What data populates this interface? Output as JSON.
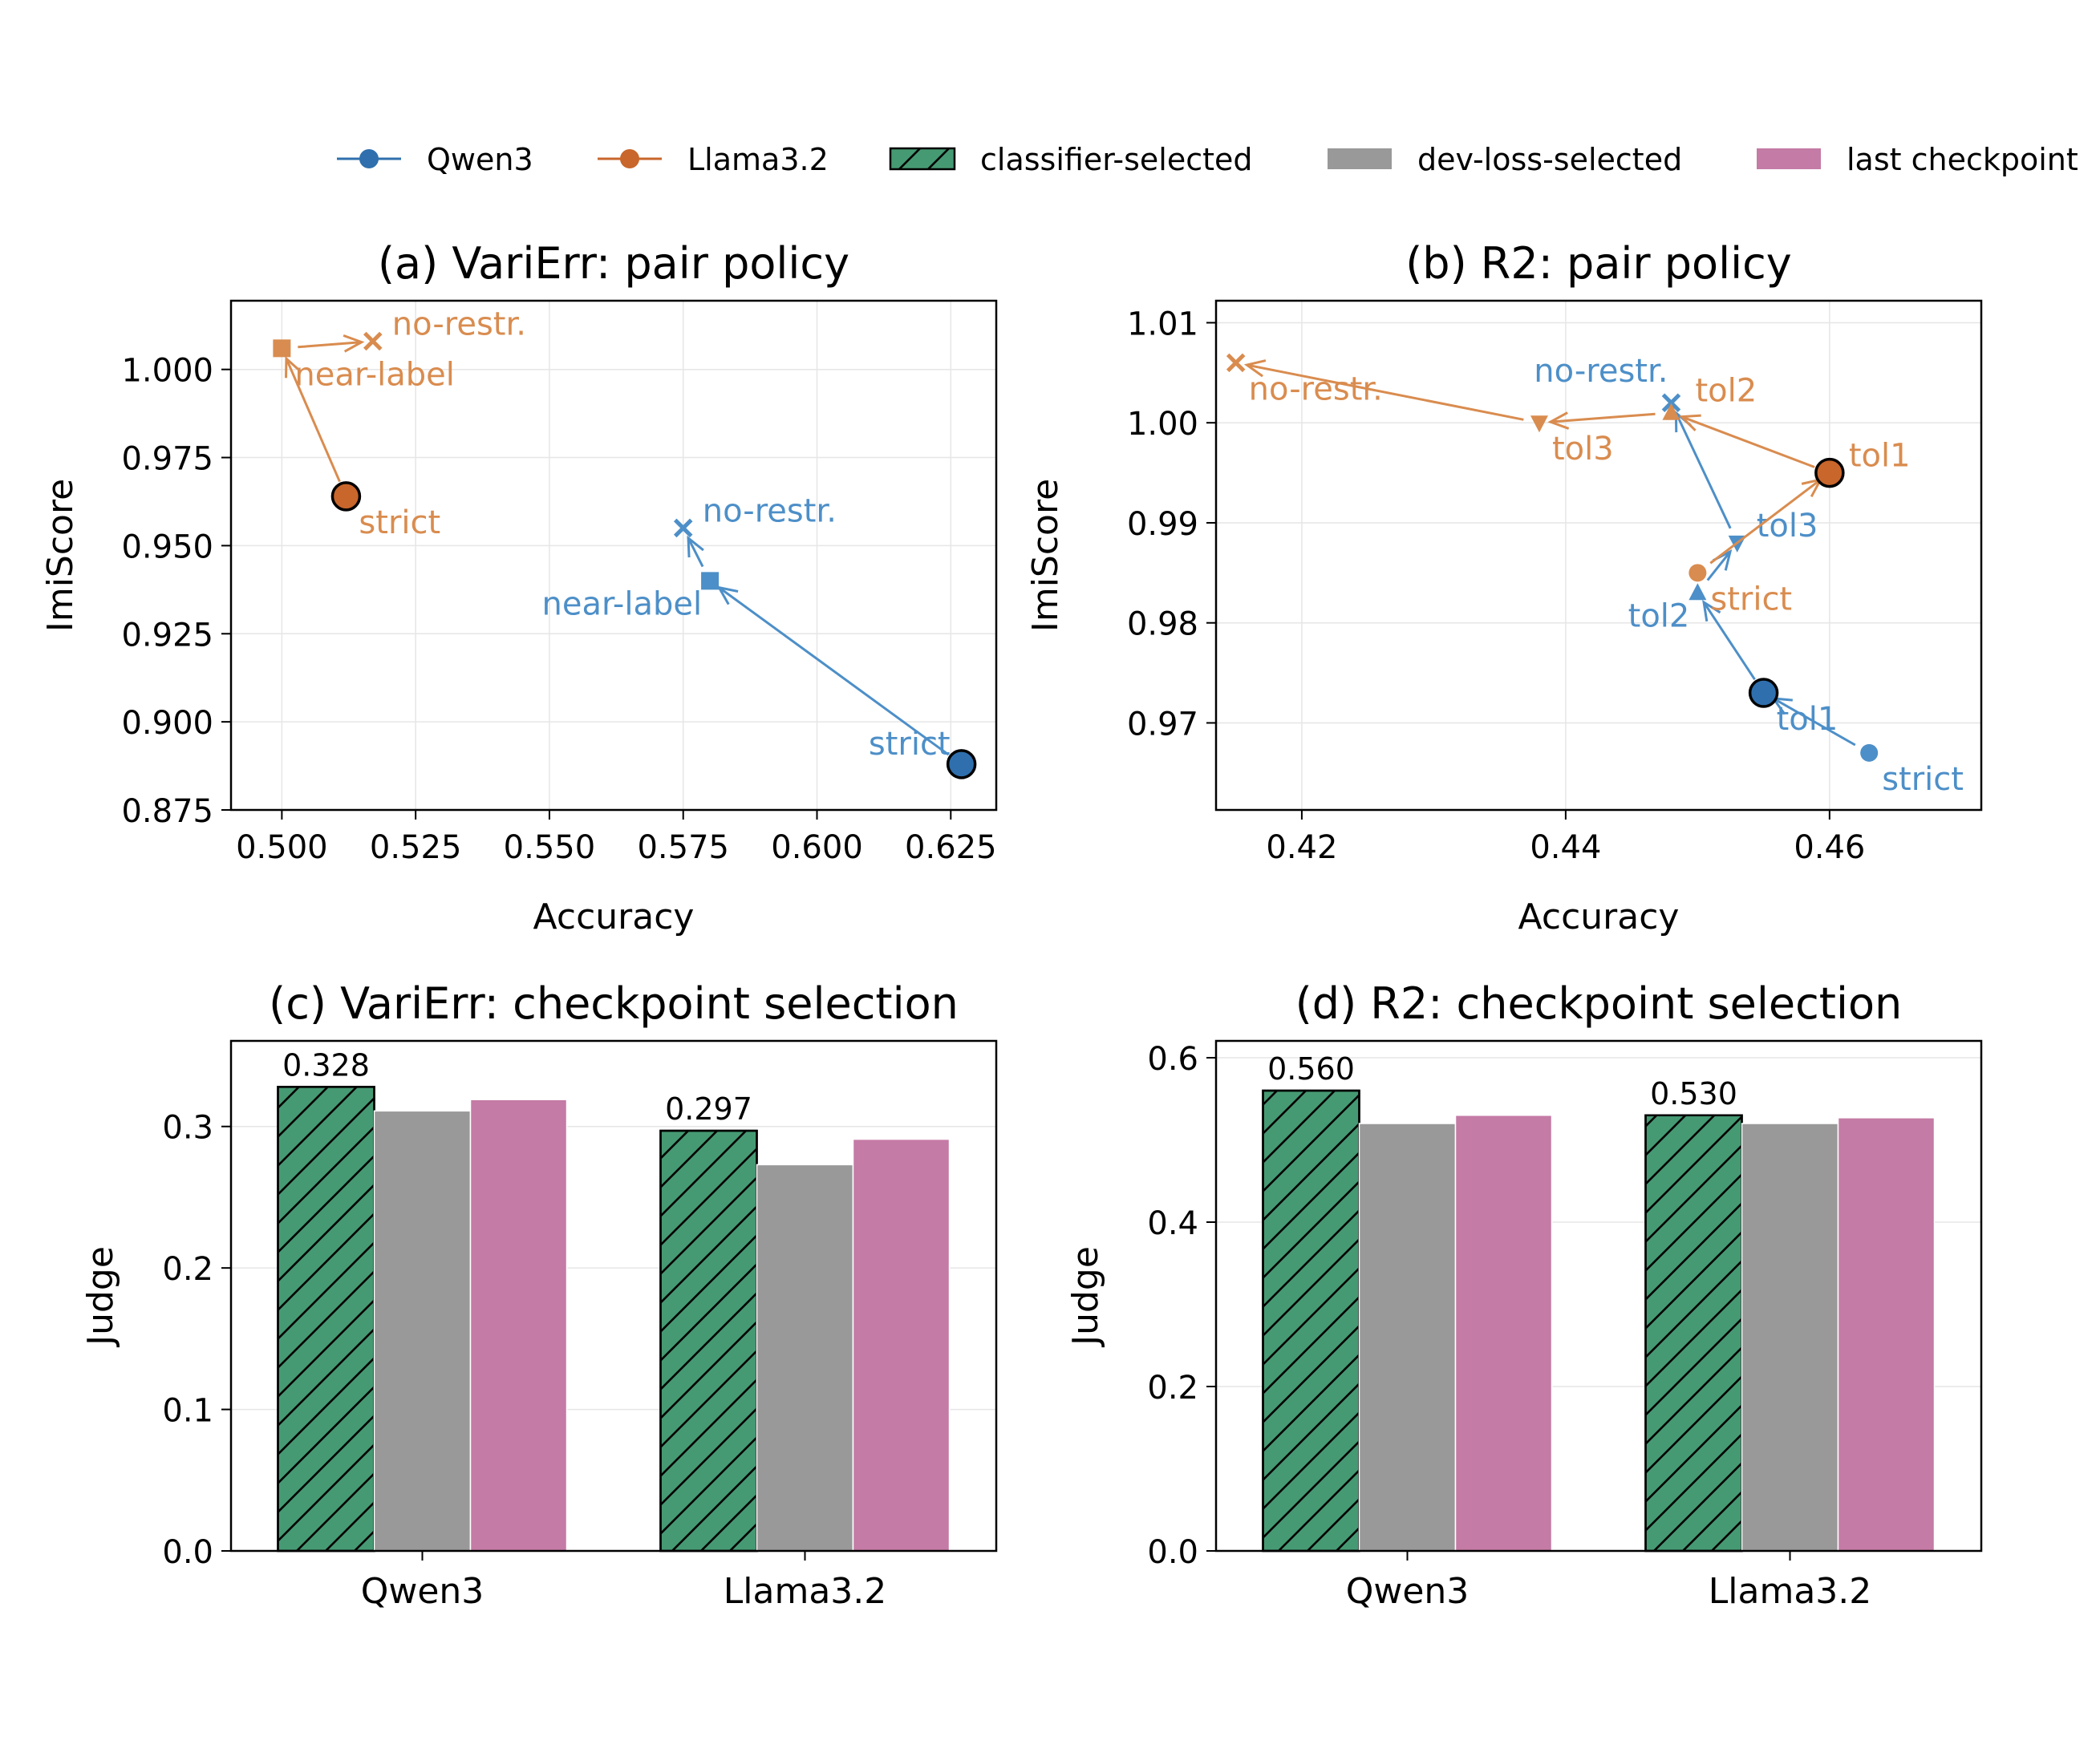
{
  "colors": {
    "qwen": "#2f6fad",
    "llama": "#c8662b",
    "qwen_light": "#4d8fc8",
    "llama_light": "#d98c4f",
    "classifier": "#469a73",
    "devloss": "#999999",
    "last": "#c47ba5"
  },
  "legend": [
    {
      "label": "Qwen3",
      "kind": "line-marker",
      "color": "qwen"
    },
    {
      "label": "Llama3.2",
      "kind": "line-marker",
      "color": "llama"
    },
    {
      "label": "classifier-selected",
      "kind": "hatched",
      "color": "classifier"
    },
    {
      "label": "dev-loss-selected",
      "kind": "bar",
      "color": "devloss"
    },
    {
      "label": "last checkpoint",
      "kind": "bar",
      "color": "last"
    }
  ],
  "chart_data": [
    {
      "type": "scatter",
      "title": "(a) VariErr: pair policy",
      "xlabel": "Accuracy",
      "ylabel": "ImiScore",
      "xlim": [
        0.4905,
        0.6335
      ],
      "ylim": [
        0.875,
        1.0195
      ],
      "xticks": [
        0.5,
        0.525,
        0.55,
        0.575,
        0.6,
        0.625
      ],
      "xtick_labels": [
        "0.500",
        "0.525",
        "0.550",
        "0.575",
        "0.600",
        "0.625"
      ],
      "yticks": [
        0.875,
        0.9,
        0.925,
        0.95,
        0.975,
        1.0
      ],
      "ytick_labels": [
        "0.875",
        "0.900",
        "0.925",
        "0.950",
        "0.975",
        "1.000"
      ],
      "series": [
        {
          "name": "Qwen3",
          "color": "qwen",
          "points": [
            {
              "label": "strict",
              "x": 0.627,
              "y": 0.888,
              "marker": "circle-big",
              "label_pos": "left"
            },
            {
              "label": "near-label",
              "x": 0.58,
              "y": 0.94,
              "marker": "square",
              "label_pos": "below-left"
            },
            {
              "label": "no-restr.",
              "x": 0.575,
              "y": 0.955,
              "marker": "x",
              "label_pos": "right"
            }
          ]
        },
        {
          "name": "Llama3.2",
          "color": "llama",
          "points": [
            {
              "label": "strict",
              "x": 0.512,
              "y": 0.964,
              "marker": "circle-big",
              "label_pos": "below-right"
            },
            {
              "label": "near-label",
              "x": 0.5,
              "y": 1.006,
              "marker": "square",
              "label_pos": "below-right"
            },
            {
              "label": "no-restr.",
              "x": 0.517,
              "y": 1.008,
              "marker": "x",
              "label_pos": "right"
            }
          ]
        }
      ]
    },
    {
      "type": "scatter",
      "title": "(b) R2: pair policy",
      "xlabel": "Accuracy",
      "ylabel": "ImiScore",
      "xlim": [
        0.4135,
        0.4715
      ],
      "ylim": [
        0.9613,
        1.0122
      ],
      "xticks": [
        0.42,
        0.44,
        0.46
      ],
      "xtick_labels": [
        "0.42",
        "0.44",
        "0.46"
      ],
      "yticks": [
        0.97,
        0.98,
        0.99,
        1.0,
        1.01
      ],
      "ytick_labels": [
        "0.97",
        "0.98",
        "0.99",
        "1.00",
        "1.01"
      ],
      "series": [
        {
          "name": "Qwen3",
          "color": "qwen",
          "points": [
            {
              "label": "strict",
              "x": 0.463,
              "y": 0.967,
              "marker": "circle",
              "label_pos": "below-right"
            },
            {
              "label": "tol1",
              "x": 0.455,
              "y": 0.973,
              "marker": "circle-big",
              "label_pos": "below-right"
            },
            {
              "label": "tol2",
              "x": 0.45,
              "y": 0.983,
              "marker": "triangle-up",
              "label_pos": "below-left"
            },
            {
              "label": "tol3",
              "x": 0.453,
              "y": 0.988,
              "marker": "triangle-down",
              "label_pos": "right"
            },
            {
              "label": "no-restr.",
              "x": 0.448,
              "y": 1.002,
              "marker": "x",
              "label_pos": "above-left"
            }
          ]
        },
        {
          "name": "Llama3.2",
          "color": "llama",
          "points": [
            {
              "label": "strict",
              "x": 0.45,
              "y": 0.985,
              "marker": "circle",
              "label_pos": "below-right"
            },
            {
              "label": "tol1",
              "x": 0.46,
              "y": 0.995,
              "marker": "circle-big",
              "label_pos": "right"
            },
            {
              "label": "tol2",
              "x": 0.448,
              "y": 1.001,
              "marker": "triangle-up",
              "label_pos": "above-right"
            },
            {
              "label": "tol3",
              "x": 0.438,
              "y": 1.0,
              "marker": "triangle-down",
              "label_pos": "below-right"
            },
            {
              "label": "no-restr.",
              "x": 0.415,
              "y": 1.006,
              "marker": "x",
              "label_pos": "below-right"
            }
          ]
        }
      ]
    },
    {
      "type": "bar",
      "title": "(c) VariErr: checkpoint selection",
      "xlabel": "",
      "ylabel": "Judge",
      "ylim": [
        0,
        0.3605
      ],
      "yticks": [
        0.0,
        0.1,
        0.2,
        0.3
      ],
      "ytick_labels": [
        "0.0",
        "0.1",
        "0.2",
        "0.3"
      ],
      "categories": [
        "Qwen3",
        "Llama3.2"
      ],
      "series": [
        {
          "name": "classifier-selected",
          "color": "classifier",
          "hatched": true,
          "values": [
            0.328,
            0.297
          ],
          "value_labels": [
            "0.328",
            "0.297"
          ]
        },
        {
          "name": "dev-loss-selected",
          "color": "devloss",
          "hatched": false,
          "values": [
            0.311,
            0.273
          ]
        },
        {
          "name": "last checkpoint",
          "color": "last",
          "hatched": false,
          "values": [
            0.319,
            0.291
          ]
        }
      ]
    },
    {
      "type": "bar",
      "title": "(d) R2: checkpoint selection",
      "xlabel": "",
      "ylabel": "Judge",
      "ylim": [
        0,
        0.6205
      ],
      "yticks": [
        0.0,
        0.2,
        0.4,
        0.6
      ],
      "ytick_labels": [
        "0.0",
        "0.2",
        "0.4",
        "0.6"
      ],
      "categories": [
        "Qwen3",
        "Llama3.2"
      ],
      "series": [
        {
          "name": "classifier-selected",
          "color": "classifier",
          "hatched": true,
          "values": [
            0.56,
            0.53
          ],
          "value_labels": [
            "0.560",
            "0.530"
          ]
        },
        {
          "name": "dev-loss-selected",
          "color": "devloss",
          "hatched": false,
          "values": [
            0.52,
            0.52
          ]
        },
        {
          "name": "last checkpoint",
          "color": "last",
          "hatched": false,
          "values": [
            0.53,
            0.527
          ]
        }
      ]
    }
  ]
}
